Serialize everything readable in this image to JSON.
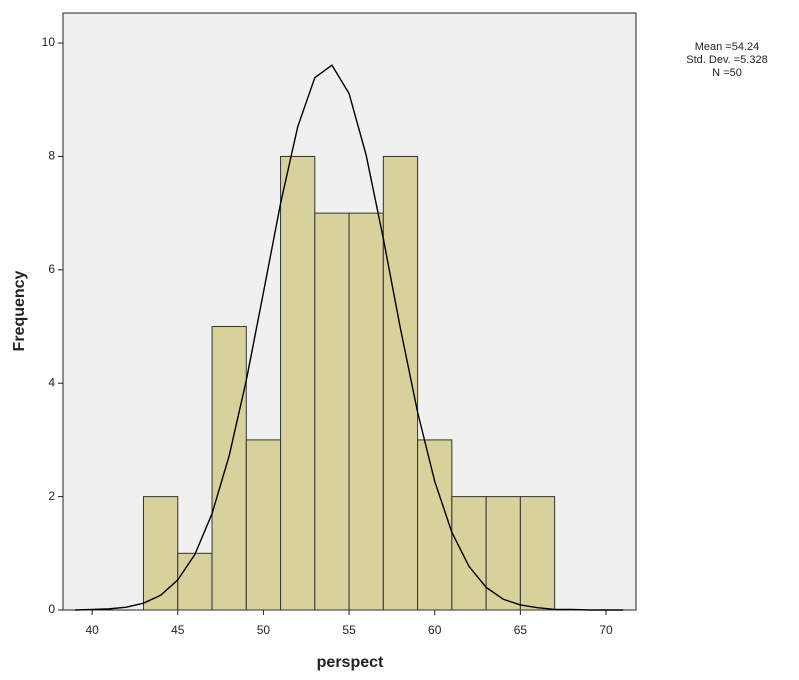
{
  "chart_data": {
    "type": "histogram",
    "x_label": "perspect",
    "y_label": "Frequency",
    "bins": [
      43,
      45,
      47,
      49,
      51,
      53,
      55,
      57,
      59,
      61,
      63,
      65,
      67
    ],
    "values": [
      2,
      1,
      5,
      3,
      8,
      7,
      7,
      8,
      3,
      2,
      2,
      2
    ],
    "color": "#d4ce92",
    "edge_color": "#333333",
    "plot_background": "#f0f0f0",
    "xlim": [
      38.3,
      71.75
    ],
    "xticks": [
      40,
      45,
      50,
      55,
      60,
      65,
      70
    ],
    "ylim": [
      0,
      10.53
    ],
    "yticks": [
      0,
      2,
      4,
      6,
      8,
      10
    ],
    "curve": {
      "color": "#000000",
      "x": [
        39,
        40,
        41,
        42,
        43,
        44,
        45,
        46,
        47,
        48,
        49,
        50,
        51,
        52,
        53,
        54,
        55,
        56,
        57,
        58,
        59,
        60,
        61,
        62,
        63,
        64,
        65,
        66,
        67,
        68,
        69,
        70,
        71
      ],
      "values": [
        0,
        0.01,
        0.02,
        0.05,
        0.12,
        0.26,
        0.53,
        0.98,
        1.7,
        2.72,
        4.05,
        5.6,
        7.17,
        8.52,
        9.39,
        9.61,
        9.11,
        8.02,
        6.55,
        4.96,
        3.49,
        2.27,
        1.37,
        0.77,
        0.4,
        0.19,
        0.09,
        0.04,
        0.01,
        0.01,
        0,
        0,
        0
      ]
    },
    "stats": [
      "Mean =54.24",
      "Std. Dev. =5.328",
      "N =50"
    ]
  }
}
